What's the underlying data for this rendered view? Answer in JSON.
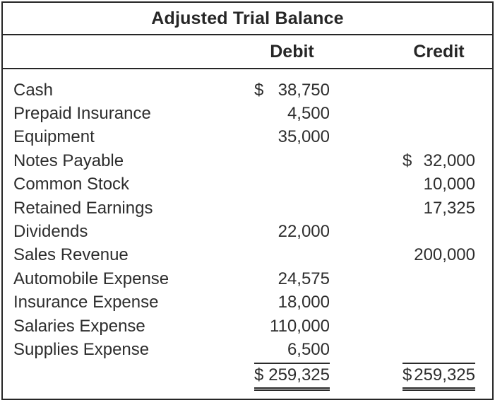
{
  "title": "Adjusted Trial Balance",
  "columns": {
    "debit": "Debit",
    "credit": "Credit"
  },
  "rows": [
    {
      "account": "Cash",
      "debit_dollar": "$",
      "debit": "38,750"
    },
    {
      "account": "Prepaid Insurance",
      "debit": "4,500"
    },
    {
      "account": "Equipment",
      "debit": "35,000"
    },
    {
      "account": "Notes Payable",
      "credit_dollar": "$",
      "credit": "32,000"
    },
    {
      "account": "Common Stock",
      "credit": "10,000"
    },
    {
      "account": "Retained Earnings",
      "credit": "17,325"
    },
    {
      "account": "Dividends",
      "debit": "22,000"
    },
    {
      "account": "Sales Revenue",
      "credit": "200,000"
    },
    {
      "account": "Automobile Expense",
      "debit": "24,575"
    },
    {
      "account": "Insurance Expense",
      "debit": "18,000"
    },
    {
      "account": "Salaries Expense",
      "debit": "110,000"
    },
    {
      "account": "Supplies Expense",
      "debit": "6,500"
    }
  ],
  "totals": {
    "debit_dollar": "$",
    "debit": "259,325",
    "credit_dollar": "$",
    "credit": "259,325"
  }
}
